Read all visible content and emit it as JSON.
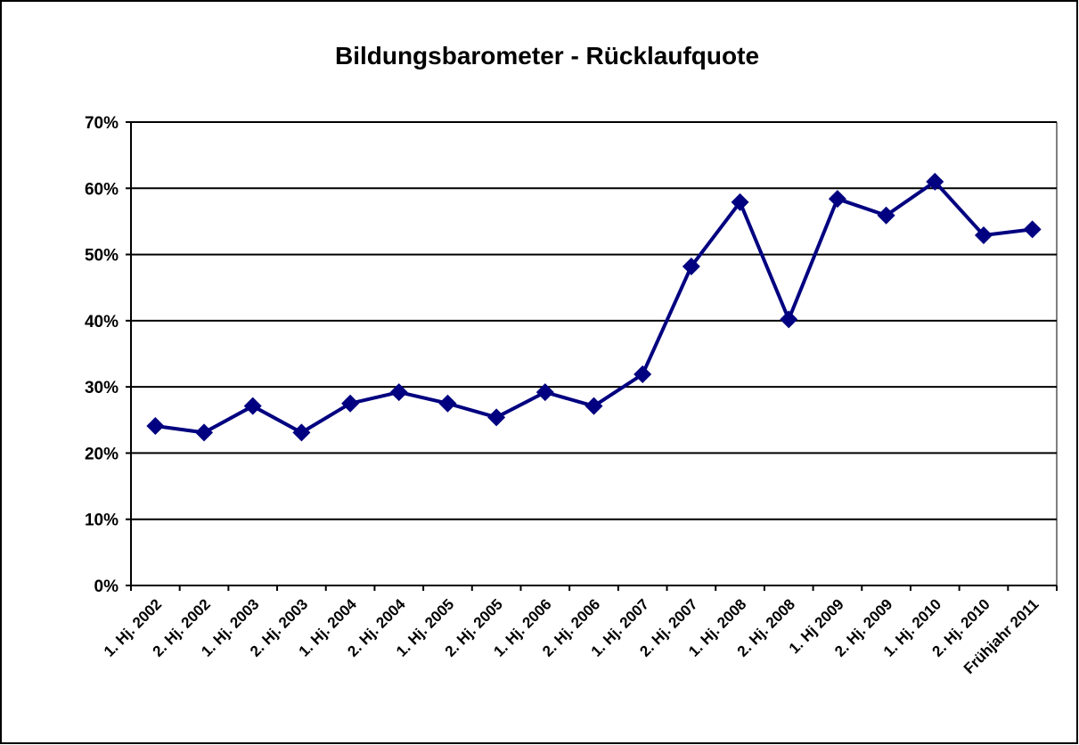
{
  "chart_data": {
    "type": "line",
    "title": "Bildungsbarometer - Rücklaufquote",
    "categories": [
      "1. Hj. 2002",
      "2. Hj. 2002",
      "1. Hj. 2003",
      "2. Hj. 2003",
      "1. Hj. 2004",
      "2. Hj. 2004",
      "1. Hj. 2005",
      "2. Hj. 2005",
      "1. Hj. 2006",
      "2. Hj. 2006",
      "1. Hj. 2007",
      "2. Hj. 2007",
      "1. Hj. 2008",
      "2. Hj. 2008",
      "1. Hj 2009",
      "2. Hj. 2009",
      "1. Hj. 2010",
      "2. Hj. 2010",
      "Frühjahr 2011"
    ],
    "values": [
      24.1,
      23.1,
      27.1,
      23.1,
      27.5,
      29.2,
      27.5,
      25.4,
      29.2,
      27.1,
      31.9,
      48.2,
      57.9,
      40.2,
      58.4,
      55.9,
      61.0,
      52.9,
      53.8
    ],
    "color": "#000080",
    "ylim": [
      0,
      70
    ],
    "yticks": [
      {
        "value": 0,
        "label": "0%"
      },
      {
        "value": 10,
        "label": "10%"
      },
      {
        "value": 20,
        "label": "20%"
      },
      {
        "value": 30,
        "label": "30%"
      },
      {
        "value": 40,
        "label": "40%"
      },
      {
        "value": 50,
        "label": "50%"
      },
      {
        "value": 60,
        "label": "60%"
      },
      {
        "value": 70,
        "label": "70%"
      }
    ],
    "grid": true
  }
}
